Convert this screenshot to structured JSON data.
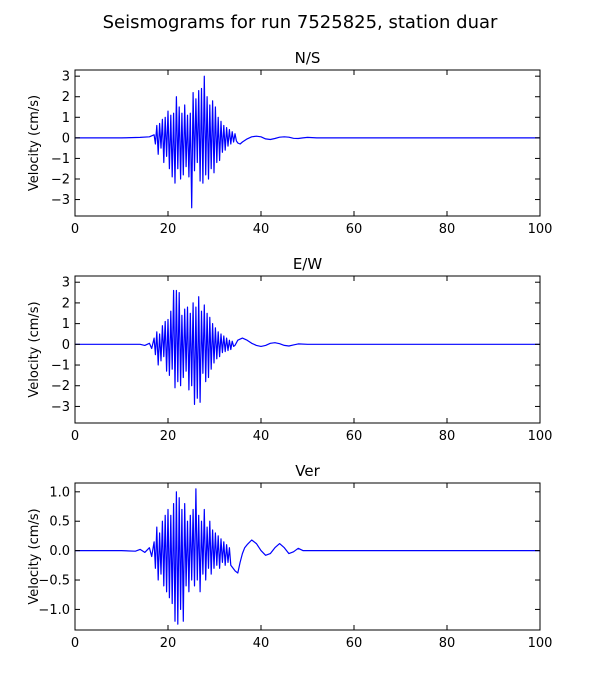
{
  "page": {
    "title": "Seismograms for run 7525825, station duar"
  },
  "chart_data": [
    {
      "type": "line",
      "title": "N/S",
      "ylabel": "Velocity (cm/s)",
      "xlabel": "",
      "xlim": [
        0,
        100
      ],
      "ylim": [
        -3.8,
        3.3
      ],
      "xticks": [
        0,
        20,
        40,
        60,
        80,
        100
      ],
      "yticks": [
        -3,
        -2,
        -1,
        0,
        1,
        2,
        3
      ],
      "ytick_labels": [
        "−3",
        "−2",
        "−1",
        "0",
        "1",
        "2",
        "3"
      ],
      "color": "#0000ff",
      "series": [
        {
          "x": [
            0,
            10,
            14,
            16,
            17,
            17.3,
            17.6,
            17.9,
            18.2,
            18.5,
            18.8,
            19.1,
            19.4,
            19.7,
            20,
            20.3,
            20.6,
            20.9,
            21.2,
            21.5,
            21.8,
            22.1,
            22.4,
            22.7,
            23,
            23.3,
            23.6,
            23.9,
            24.2,
            24.5,
            24.8,
            25.1,
            25.4,
            25.7,
            26,
            26.3,
            26.6,
            26.9,
            27.2,
            27.5,
            27.8,
            28.1,
            28.4,
            28.7,
            29,
            29.3,
            29.6,
            29.9,
            30.2,
            30.5,
            30.8,
            31.1,
            31.4,
            31.7,
            32,
            32.3,
            32.6,
            32.9,
            33.2,
            33.5,
            33.8,
            34.1,
            34.4,
            34.7,
            35,
            35.5,
            36,
            37,
            38,
            39,
            40,
            41,
            42,
            43,
            44,
            45,
            46,
            47,
            48,
            49,
            50,
            52,
            55,
            60,
            70,
            80,
            90,
            100
          ],
          "values": [
            0,
            0,
            0.02,
            0.05,
            0.15,
            -0.3,
            0.6,
            -0.8,
            0.7,
            -0.5,
            0.9,
            -1.2,
            1.0,
            -0.9,
            1.3,
            -1.5,
            1.1,
            -1.9,
            1.2,
            -2.2,
            2.0,
            -1.5,
            1.5,
            -2.0,
            1.2,
            -1.8,
            1.6,
            -1.4,
            1.1,
            -1.9,
            1.2,
            -3.4,
            2.2,
            -1.6,
            1.9,
            -1.2,
            2.3,
            -2.1,
            2.4,
            -2.2,
            3.0,
            -1.8,
            2.0,
            -2.0,
            1.6,
            -1.5,
            1.8,
            -1.7,
            1.5,
            -1.2,
            1.0,
            -1.1,
            0.8,
            -0.7,
            0.6,
            -0.6,
            0.5,
            -0.4,
            0.4,
            -0.3,
            0.3,
            -0.2,
            0.2,
            -0.15,
            -0.25,
            -0.3,
            -0.2,
            -0.05,
            0.05,
            0.08,
            0.05,
            -0.05,
            -0.08,
            -0.03,
            0.03,
            0.05,
            0.03,
            -0.02,
            -0.03,
            0,
            0.02,
            0,
            0,
            0,
            0,
            0,
            0,
            0
          ]
        }
      ]
    },
    {
      "type": "line",
      "title": "E/W",
      "ylabel": "Velocity (cm/s)",
      "xlabel": "",
      "xlim": [
        0,
        100
      ],
      "ylim": [
        -3.8,
        3.3
      ],
      "xticks": [
        0,
        20,
        40,
        60,
        80,
        100
      ],
      "yticks": [
        -3,
        -2,
        -1,
        0,
        1,
        2,
        3
      ],
      "ytick_labels": [
        "−3",
        "−2",
        "−1",
        "0",
        "1",
        "2",
        "3"
      ],
      "color": "#0000ff",
      "series": [
        {
          "x": [
            0,
            10,
            14,
            15,
            16,
            16.5,
            17,
            17.3,
            17.6,
            17.9,
            18.2,
            18.5,
            18.8,
            19.1,
            19.4,
            19.7,
            20,
            20.3,
            20.6,
            20.9,
            21.2,
            21.5,
            21.8,
            22.1,
            22.4,
            22.7,
            23,
            23.3,
            23.6,
            23.9,
            24.2,
            24.5,
            24.8,
            25.1,
            25.4,
            25.7,
            26,
            26.3,
            26.6,
            26.9,
            27.2,
            27.5,
            27.8,
            28.1,
            28.4,
            28.7,
            29,
            29.3,
            29.6,
            29.9,
            30.2,
            30.5,
            30.8,
            31.1,
            31.4,
            31.7,
            32,
            32.3,
            32.6,
            32.9,
            33.2,
            33.5,
            33.8,
            34.1,
            34.4,
            35,
            36,
            37,
            38,
            39,
            40,
            41,
            42,
            43,
            44,
            45,
            46,
            47,
            48,
            50,
            55,
            60,
            70,
            80,
            90,
            100
          ],
          "values": [
            0,
            0,
            0,
            -0.05,
            0.05,
            -0.2,
            0.3,
            -0.5,
            0.6,
            -1.0,
            0.5,
            -0.8,
            0.9,
            -0.6,
            1.1,
            -1.3,
            1.2,
            -1.5,
            1.6,
            -1.2,
            2.6,
            -2.1,
            2.6,
            -1.8,
            2.5,
            -2.0,
            1.4,
            -1.6,
            1.7,
            -1.3,
            1.8,
            -2.2,
            1.5,
            -2.0,
            2.0,
            -2.9,
            1.8,
            -2.6,
            2.3,
            -2.8,
            1.6,
            -1.4,
            1.9,
            -1.8,
            1.5,
            -1.6,
            1.3,
            -1.2,
            1.0,
            -0.9,
            0.8,
            -0.7,
            0.6,
            -0.6,
            0.5,
            -0.4,
            0.4,
            -0.35,
            0.3,
            -0.3,
            0.2,
            -0.25,
            0.15,
            -0.1,
            -0.05,
            0.2,
            0.3,
            0.2,
            0.05,
            -0.05,
            -0.1,
            -0.05,
            0.05,
            0.08,
            0.03,
            -0.05,
            -0.08,
            -0.03,
            0.02,
            0,
            0,
            0,
            0,
            0,
            0,
            0
          ]
        }
      ]
    },
    {
      "type": "line",
      "title": "Ver",
      "ylabel": "Velocity (cm/s)",
      "xlabel": "",
      "xlim": [
        0,
        100
      ],
      "ylim": [
        -1.35,
        1.15
      ],
      "xticks": [
        0,
        20,
        40,
        60,
        80,
        100
      ],
      "yticks": [
        -1.0,
        -0.5,
        0.0,
        0.5,
        1.0
      ],
      "ytick_labels": [
        "−1.0",
        "−0.5",
        "0.0",
        "0.5",
        "1.0"
      ],
      "color": "#0000ff",
      "series": [
        {
          "x": [
            0,
            10,
            13,
            14,
            15,
            16,
            16.5,
            17,
            17.3,
            17.6,
            17.9,
            18.2,
            18.5,
            18.8,
            19.1,
            19.4,
            19.7,
            20,
            20.3,
            20.6,
            20.9,
            21.2,
            21.5,
            21.8,
            22.1,
            22.4,
            22.7,
            23,
            23.3,
            23.6,
            23.9,
            24.2,
            24.5,
            24.8,
            25.1,
            25.4,
            25.7,
            26,
            26.3,
            26.6,
            26.9,
            27.2,
            27.5,
            27.8,
            28.1,
            28.4,
            28.7,
            29,
            29.3,
            29.6,
            29.9,
            30.2,
            30.5,
            30.8,
            31.1,
            31.4,
            31.7,
            32,
            32.3,
            32.6,
            32.9,
            33.2,
            33.5,
            34,
            34.5,
            35,
            35.5,
            36,
            36.5,
            37,
            38,
            39,
            40,
            41,
            42,
            43,
            44,
            45,
            46,
            47,
            48,
            49,
            50,
            52,
            55,
            60,
            70,
            80,
            90,
            100
          ],
          "values": [
            0,
            0,
            -0.01,
            0.02,
            -0.03,
            0.05,
            -0.1,
            0.15,
            -0.3,
            0.4,
            -0.5,
            0.3,
            -0.4,
            0.5,
            -0.6,
            0.6,
            -0.7,
            0.7,
            -0.8,
            0.6,
            -0.9,
            0.8,
            -1.2,
            1.0,
            -1.25,
            0.9,
            -1.0,
            0.7,
            -1.2,
            0.8,
            -0.6,
            0.5,
            -0.7,
            0.6,
            -0.5,
            0.7,
            -0.6,
            1.05,
            -0.5,
            0.6,
            -0.7,
            0.5,
            -0.4,
            0.7,
            -0.5,
            0.4,
            -0.3,
            0.5,
            -0.4,
            0.35,
            -0.3,
            0.3,
            -0.25,
            0.25,
            -0.3,
            0.2,
            -0.2,
            0.15,
            -0.25,
            0.1,
            -0.2,
            0.05,
            -0.25,
            -0.3,
            -0.35,
            -0.38,
            -0.2,
            -0.05,
            0.05,
            0.1,
            0.18,
            0.12,
            0.0,
            -0.08,
            -0.05,
            0.05,
            0.12,
            0.05,
            -0.05,
            -0.02,
            0.04,
            0.0,
            0.0,
            0,
            0,
            0,
            0,
            0,
            0,
            0
          ]
        }
      ]
    }
  ]
}
